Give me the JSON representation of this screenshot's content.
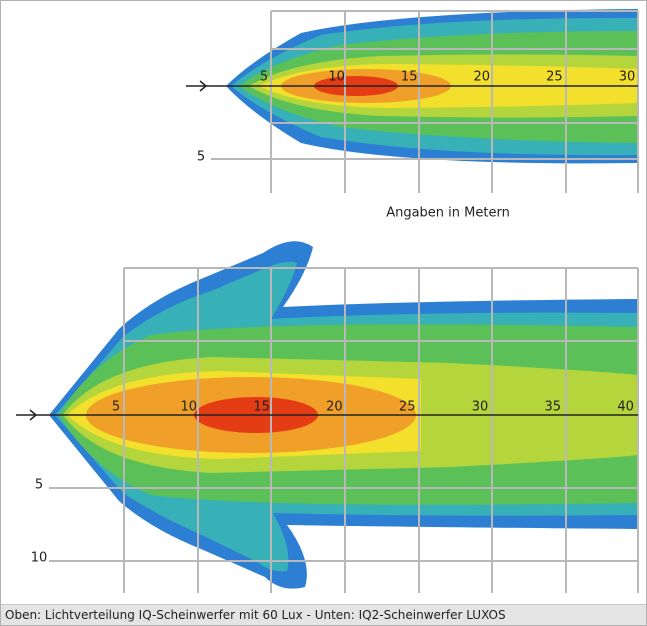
{
  "top": {
    "distance_labels": [
      "5",
      "10",
      "15",
      "20",
      "25",
      "30"
    ],
    "side_labels": [
      "5"
    ]
  },
  "note": "Angaben in Metern",
  "bottom": {
    "distance_labels": [
      "5",
      "10",
      "15",
      "20",
      "25",
      "30",
      "35",
      "40"
    ],
    "side_labels": [
      "5",
      "10"
    ]
  },
  "caption": "Oben: Lichtverteilung IQ-Scheinwerfer mit 60 Lux - Unten: IQ2-Scheinwerfer LUXOS"
}
